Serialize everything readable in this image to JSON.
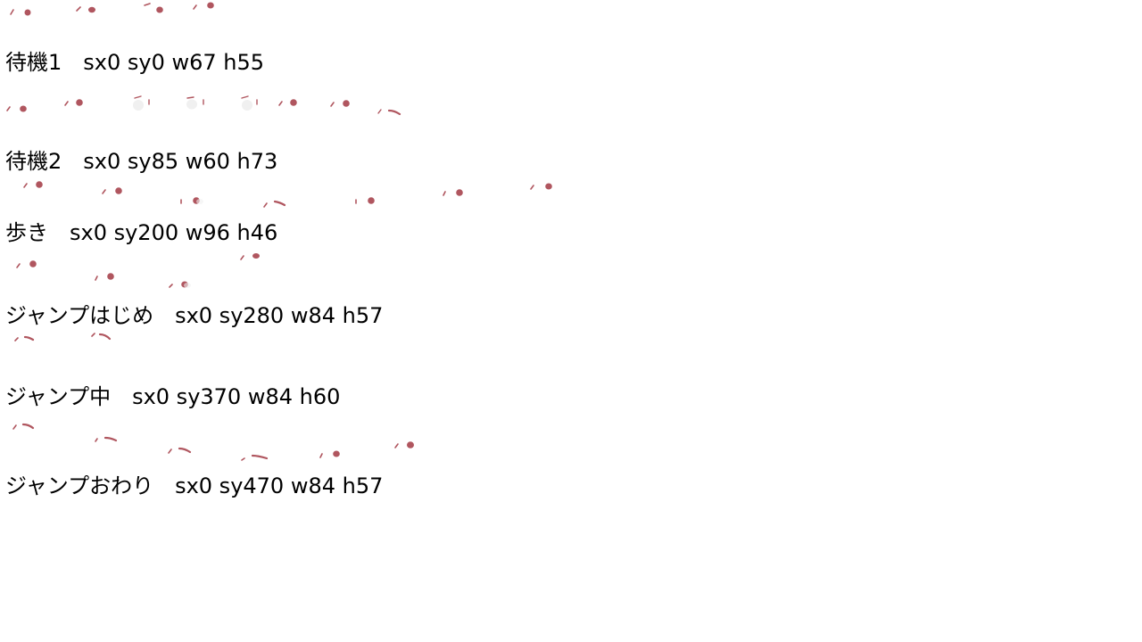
{
  "colors": {
    "background": "#ffffff",
    "text": "#000000",
    "sprite_eye": "#b0565f",
    "sprite_body": "#f0f0f0"
  },
  "animations": [
    {
      "label": "待機1　sx0 sy0 w67 h55"
    },
    {
      "label": "待機2　sx0 sy85 w60 h73"
    },
    {
      "label": "歩き　sx0 sy200 w96 h46"
    },
    {
      "label": "ジャンプはじめ　sx0 sy280 w84 h57"
    },
    {
      "label": "ジャンプ中　sx0 sy370 w84 h60"
    },
    {
      "label": "ジャンプおわり　sx0 sy470 w84 h57"
    }
  ],
  "sprite_icon": "cat-eye-sprite-frame"
}
